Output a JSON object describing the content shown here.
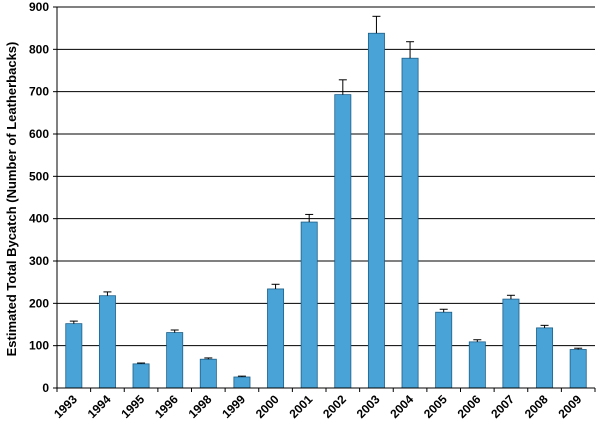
{
  "chart_data": {
    "type": "bar",
    "title": "",
    "xlabel": "",
    "ylabel": "Estimated Total Bycatch (Number of Leatherbacks)",
    "ylim": [
      0,
      900
    ],
    "yticks": [
      0,
      100,
      200,
      300,
      400,
      500,
      600,
      700,
      800,
      900
    ],
    "grid": "horizontal",
    "legend": "none",
    "bar_color": "#4aa3d6",
    "categories": [
      "1993",
      "1994",
      "1995",
      "1996",
      "1998",
      "1999",
      "2000",
      "2001",
      "2002",
      "2003",
      "2004",
      "2005",
      "2006",
      "2007",
      "2008",
      "2009"
    ],
    "values": [
      152,
      218,
      57,
      131,
      68,
      26,
      234,
      392,
      693,
      838,
      779,
      179,
      109,
      210,
      142,
      91
    ],
    "error_upper": [
      158,
      227,
      59,
      137,
      71,
      28,
      245,
      410,
      728,
      878,
      818,
      186,
      114,
      219,
      148,
      94
    ]
  }
}
